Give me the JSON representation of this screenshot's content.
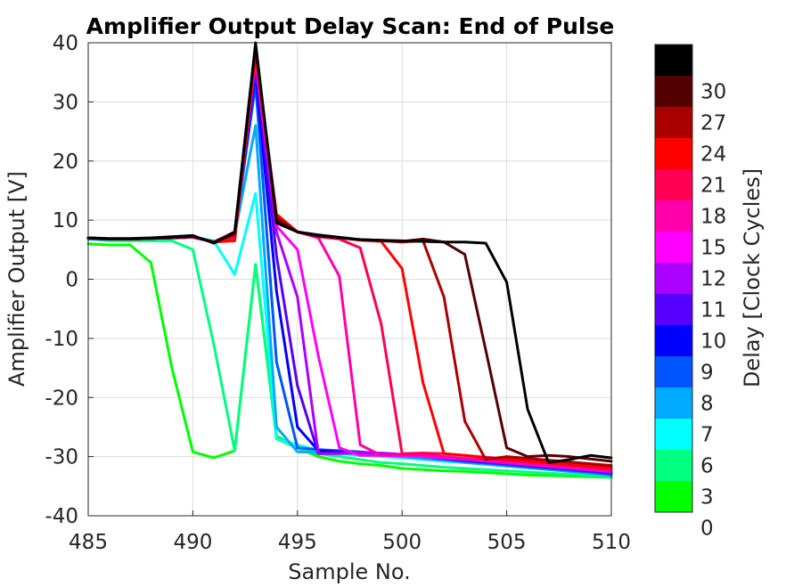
{
  "chart_data": {
    "type": "line",
    "title": "Amplifier Output Delay Scan: End of Pulse",
    "xlabel": "Sample No.",
    "ylabel": "Amplifier Output [V]",
    "xlim": [
      485,
      510
    ],
    "ylim": [
      -40,
      40
    ],
    "xticks": [
      "485",
      "490",
      "495",
      "500",
      "505",
      "510"
    ],
    "yticks": [
      "40",
      "30",
      "20",
      "10",
      "0",
      "-10",
      "-20",
      "-30",
      "-40"
    ],
    "grid": true,
    "x": [
      485,
      486,
      487,
      488,
      489,
      490,
      491,
      492,
      493,
      494,
      495,
      496,
      497,
      498,
      499,
      500,
      501,
      502,
      503,
      504,
      505,
      506,
      507,
      508,
      509,
      510
    ],
    "colorbar": {
      "label": "Delay [Clock Cycles]",
      "tick_labels": [
        "30",
        "27",
        "24",
        "21",
        "18",
        "15",
        "12",
        "11",
        "10",
        "9",
        "8",
        "7",
        "6",
        "3",
        "0"
      ],
      "segments": [
        {
          "color": "#000000",
          "label": ""
        },
        {
          "color": "#550000",
          "label": "30"
        },
        {
          "color": "#aa0000",
          "label": "27"
        },
        {
          "color": "#ff0000",
          "label": "24"
        },
        {
          "color": "#ff0055",
          "label": "21"
        },
        {
          "color": "#ff00aa",
          "label": "18"
        },
        {
          "color": "#ff00ff",
          "label": "15"
        },
        {
          "color": "#aa00ff",
          "label": "12"
        },
        {
          "color": "#5500ff",
          "label": "11"
        },
        {
          "color": "#0000ff",
          "label": "10"
        },
        {
          "color": "#0055ff",
          "label": "9"
        },
        {
          "color": "#00aaff",
          "label": "8"
        },
        {
          "color": "#00ffff",
          "label": "7"
        },
        {
          "color": "#00ff80",
          "label": "6"
        },
        {
          "color": "#00ff00",
          "label": "3"
        }
      ]
    },
    "series": [
      {
        "color": "#00ff00",
        "values": [
          6,
          5.8,
          5.8,
          2.8,
          -15,
          -29.2,
          -30.2,
          -29,
          2.5,
          -26.5,
          -28.5,
          -30,
          -30.8,
          -31.2,
          -31.5,
          -32,
          -32.2,
          -32.4,
          -32.5,
          -32.7,
          -32.9,
          -33.1,
          -33.2,
          -33.3,
          -33.4,
          -33.5
        ]
      },
      {
        "color": "#00ff80",
        "values": [
          6.8,
          6.5,
          6.5,
          6.5,
          6.5,
          5,
          -11,
          -29,
          2.5,
          -27,
          -28.5,
          -29.5,
          -30,
          -30.5,
          -31,
          -31.2,
          -31.5,
          -31.8,
          -32,
          -32.2,
          -32.4,
          -32.6,
          -32.8,
          -33,
          -33.2,
          -33.4
        ]
      },
      {
        "color": "#00ffff",
        "values": [
          6.8,
          6.7,
          6.8,
          6.8,
          6.9,
          7.2,
          6.5,
          0.8,
          14.5,
          -27,
          -28,
          -29,
          -29.5,
          -29.8,
          -30,
          -30.2,
          -30.5,
          -30.8,
          -31,
          -31.2,
          -31.5,
          -31.8,
          -32,
          -32.5,
          -32.8,
          -33
        ]
      },
      {
        "color": "#00aaff",
        "values": [
          6.8,
          6.8,
          6.8,
          6.9,
          7,
          7.1,
          6.3,
          7.5,
          26,
          -25,
          -29.2,
          -29.3,
          -29.4,
          -29.5,
          -29.8,
          -30,
          -30.3,
          -30.6,
          -31,
          -31.3,
          -31.6,
          -31.9,
          -32.2,
          -32.5,
          -32.8,
          -33.2
        ]
      },
      {
        "color": "#0055ff",
        "values": [
          6.9,
          6.8,
          6.8,
          6.9,
          7,
          7.1,
          6.3,
          7.8,
          33,
          -14,
          -28.5,
          -28.8,
          -29,
          -29.2,
          -29.5,
          -29.8,
          -30,
          -30.4,
          -30.8,
          -31.1,
          -31.4,
          -31.7,
          -32,
          -32.3,
          -32.6,
          -33
        ]
      },
      {
        "color": "#0000ff",
        "values": [
          6.9,
          6.8,
          6.8,
          6.9,
          7,
          7.1,
          6.3,
          8,
          35,
          -2,
          -25,
          -29,
          -29.2,
          -29.3,
          -29.5,
          -29.7,
          -30,
          -30.3,
          -30.6,
          -30.9,
          -31.2,
          -31.5,
          -31.8,
          -32.1,
          -32.4,
          -32.7
        ]
      },
      {
        "color": "#5500ff",
        "values": [
          6.9,
          6.8,
          6.8,
          6.9,
          7,
          7.1,
          6.3,
          8,
          36,
          4,
          -18,
          -29.5,
          -29.3,
          -29.3,
          -29.5,
          -29.7,
          -30,
          -30.3,
          -30.6,
          -30.9,
          -31.2,
          -31.5,
          -31.8,
          -32.1,
          -32.4,
          -32.7
        ]
      },
      {
        "color": "#aa00ff",
        "values": [
          6.9,
          6.8,
          6.8,
          6.9,
          7,
          7.1,
          6.3,
          8,
          37,
          8,
          -3,
          -29.5,
          -29.5,
          -29.3,
          -29.4,
          -29.6,
          -29.9,
          -30.2,
          -30.5,
          -30.8,
          -31.1,
          -31.4,
          -31.7,
          -32,
          -32.3,
          -32.6
        ]
      },
      {
        "color": "#ff00ff",
        "values": [
          7,
          6.8,
          6.8,
          6.9,
          7,
          7.1,
          6.3,
          8,
          37,
          9,
          5,
          -13,
          -28.5,
          -29.8,
          -29.8,
          -29.9,
          -30,
          -30.2,
          -30.4,
          -30.7,
          -31,
          -31.3,
          -31.6,
          -31.9,
          -32.2,
          -32.5
        ]
      },
      {
        "color": "#ff00aa",
        "values": [
          7,
          6.8,
          6.8,
          6.9,
          7,
          7.2,
          6.3,
          8,
          37.5,
          10,
          8,
          7,
          0.5,
          -28,
          -29.8,
          -29.6,
          -29.7,
          -30,
          -30.3,
          -30.6,
          -30.9,
          -31.2,
          -31.5,
          -31.8,
          -32.1,
          -32.4
        ]
      },
      {
        "color": "#ff0055",
        "values": [
          7,
          6.8,
          6.8,
          6.9,
          7,
          7.2,
          6.3,
          7,
          38,
          10.5,
          8,
          7.2,
          6.8,
          5.3,
          -7.5,
          -29.5,
          -29.4,
          -29.5,
          -29.8,
          -30.1,
          -30.4,
          -30.7,
          -31,
          -31.3,
          -31.6,
          -31.9
        ]
      },
      {
        "color": "#ff0000",
        "values": [
          7,
          6.8,
          6.8,
          6.9,
          7,
          7.2,
          6.3,
          6.5,
          38.5,
          11,
          8,
          7.3,
          7,
          6.6,
          6.4,
          1.8,
          -17.5,
          -29.5,
          -29.8,
          -30.2,
          -30.5,
          -30.8,
          -31.1,
          -31.4,
          -31.7,
          -32
        ]
      },
      {
        "color": "#aa0000",
        "values": [
          7,
          6.8,
          6.8,
          6.9,
          7,
          7.2,
          6.3,
          7.5,
          39,
          10.5,
          8,
          7.3,
          7,
          6.7,
          6.5,
          6.3,
          6.5,
          -3,
          -24,
          -30.5,
          -30,
          -30.3,
          -30.6,
          -30.9,
          -31.2,
          -31.5
        ]
      },
      {
        "color": "#550000",
        "values": [
          7,
          6.8,
          6.8,
          6.9,
          7,
          7.2,
          6.3,
          7.8,
          39.5,
          10,
          8,
          7.3,
          7,
          6.7,
          6.6,
          6.4,
          6.8,
          6.3,
          4.2,
          -12,
          -28.5,
          -30,
          -29.8,
          -30,
          -30.4,
          -30.8
        ]
      },
      {
        "color": "#000000",
        "values": [
          7,
          6.9,
          6.9,
          7,
          7.2,
          7.4,
          6.1,
          8,
          40,
          9.5,
          8,
          7.5,
          7.1,
          6.7,
          6.6,
          6.5,
          6.4,
          6.3,
          6.3,
          6.1,
          -0.5,
          -22,
          -31,
          -30.5,
          -29.8,
          -30.2
        ]
      }
    ]
  }
}
